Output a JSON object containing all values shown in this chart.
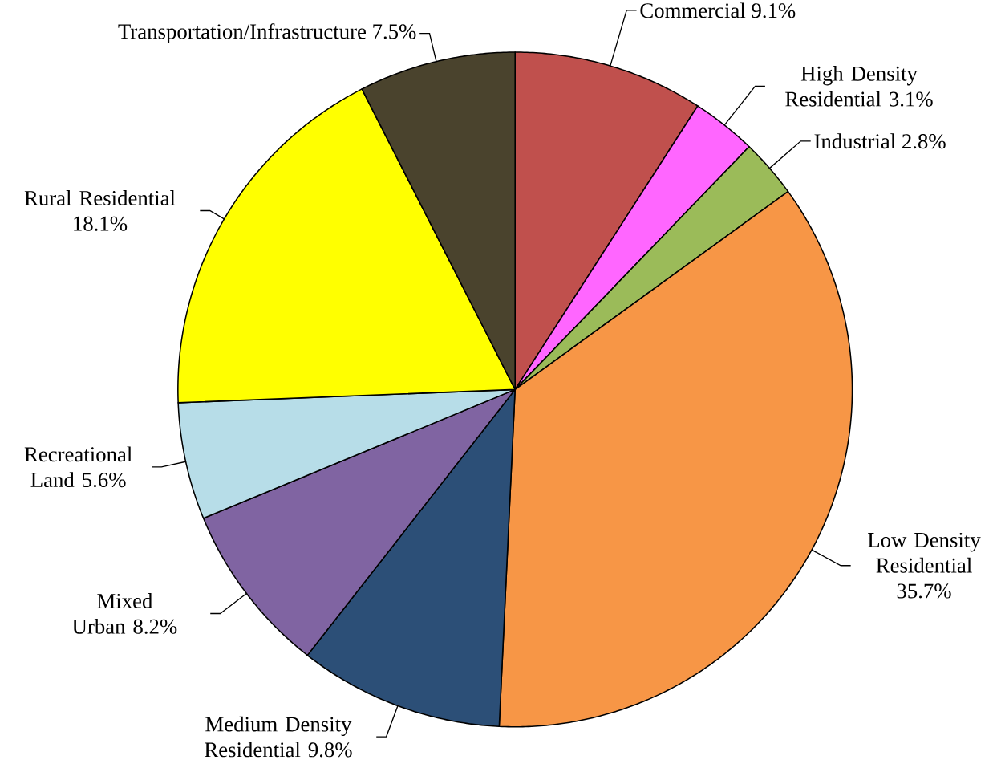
{
  "chart_data": {
    "type": "pie",
    "categories": [
      "Commercial",
      "High Density Residential",
      "Industrial",
      "Low Density Residential",
      "Medium Density Residential",
      "Mixed Urban",
      "Recreational Land",
      "Rural Residential",
      "Transportation/Infrastructure"
    ],
    "values": [
      9.1,
      3.1,
      2.8,
      35.7,
      9.8,
      8.2,
      5.6,
      18.1,
      7.5
    ],
    "value_labels": [
      "9.1%",
      "3.1%",
      "2.8%",
      "35.7%",
      "9.8%",
      "8.2%",
      "5.6%",
      "18.1%",
      "7.5%"
    ],
    "colors": [
      "#c0504d",
      "#ff66ff",
      "#9bbb59",
      "#f79646",
      "#2c4f77",
      "#8064a2",
      "#b7dde8",
      "#ffff00",
      "#4a432d"
    ]
  }
}
